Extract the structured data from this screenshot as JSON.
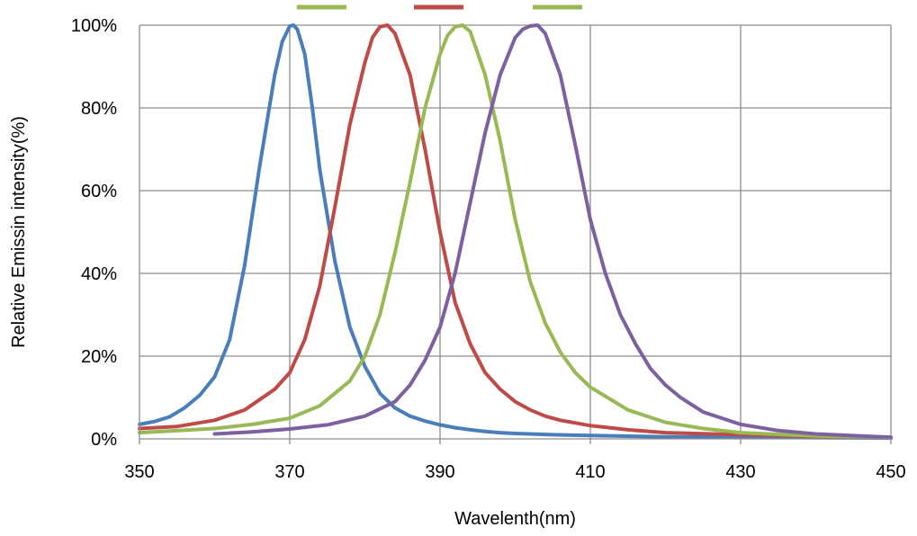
{
  "chart_data": {
    "type": "line",
    "title": "",
    "xlabel": "Wavelenth(nm)",
    "ylabel": "Relative Emissin intensity(%)",
    "xlim": [
      350,
      450
    ],
    "ylim": [
      0,
      100
    ],
    "x_ticks": [
      "350",
      "370",
      "390",
      "410",
      "430",
      "450"
    ],
    "y_ticks": [
      "0%",
      "20%",
      "40%",
      "60%",
      "80%",
      "100%"
    ],
    "grid": true,
    "legend": "top",
    "series": [
      {
        "color": "#4a7ebb",
        "x": [
          350,
          352,
          354,
          356,
          358,
          360,
          362,
          364,
          366,
          368,
          369,
          370,
          370.5,
          371,
          372,
          373,
          374,
          376,
          378,
          380,
          382,
          384,
          386,
          388,
          390,
          392,
          394,
          396,
          398,
          400,
          405,
          410,
          420,
          430,
          440,
          450
        ],
        "y": [
          3.5,
          4.2,
          5.3,
          7.5,
          10.5,
          15,
          24,
          42,
          66,
          88,
          96,
          99.8,
          100,
          99,
          93,
          80,
          65,
          43,
          27,
          17.5,
          11,
          7.5,
          5.5,
          4.3,
          3.4,
          2.7,
          2.2,
          1.8,
          1.5,
          1.3,
          1,
          0.8,
          0.5,
          0.4,
          0.3,
          0.2
        ]
      },
      {
        "color": "#be4b48",
        "x": [
          350,
          355,
          360,
          364,
          368,
          370,
          372,
          374,
          376,
          378,
          380,
          381,
          382,
          383,
          384,
          386,
          388,
          390,
          392,
          394,
          396,
          398,
          400,
          402,
          404,
          406,
          410,
          415,
          420,
          430,
          440,
          450
        ],
        "y": [
          2.5,
          3,
          4.5,
          7,
          12,
          16,
          24,
          37,
          56,
          76,
          91,
          97,
          99.6,
          100,
          98,
          88,
          70,
          50,
          33,
          23,
          16,
          12,
          9,
          7,
          5.5,
          4.5,
          3.2,
          2.2,
          1.5,
          1,
          0.6,
          0.4
        ]
      },
      {
        "color": "#98b954",
        "x": [
          350,
          360,
          365,
          370,
          374,
          378,
          380,
          382,
          384,
          386,
          388,
          390,
          391,
          392,
          393,
          394,
          396,
          398,
          400,
          402,
          404,
          406,
          408,
          410,
          415,
          420,
          425,
          430,
          440,
          450
        ],
        "y": [
          1.5,
          2.5,
          3.5,
          5,
          8,
          14,
          20,
          30,
          45,
          62,
          80,
          93,
          97.5,
          99.6,
          100,
          98.5,
          88,
          72,
          53,
          38,
          28,
          21,
          16,
          12.5,
          7,
          4,
          2.5,
          1.5,
          0.7,
          0.4
        ]
      },
      {
        "color": "#7d60a0",
        "x": [
          360,
          365,
          370,
          375,
          380,
          384,
          386,
          388,
          390,
          392,
          394,
          396,
          398,
          400,
          401,
          402,
          403,
          404,
          406,
          408,
          410,
          412,
          414,
          416,
          418,
          420,
          422,
          425,
          430,
          435,
          440,
          450
        ],
        "y": [
          1.2,
          1.7,
          2.4,
          3.4,
          5.5,
          9,
          13,
          19,
          27,
          40,
          57,
          74,
          88,
          97,
          99,
          99.8,
          100,
          98,
          88,
          71,
          53,
          40,
          30,
          23,
          17,
          13,
          10,
          6.5,
          3.5,
          2,
          1.2,
          0.4
        ]
      }
    ]
  }
}
